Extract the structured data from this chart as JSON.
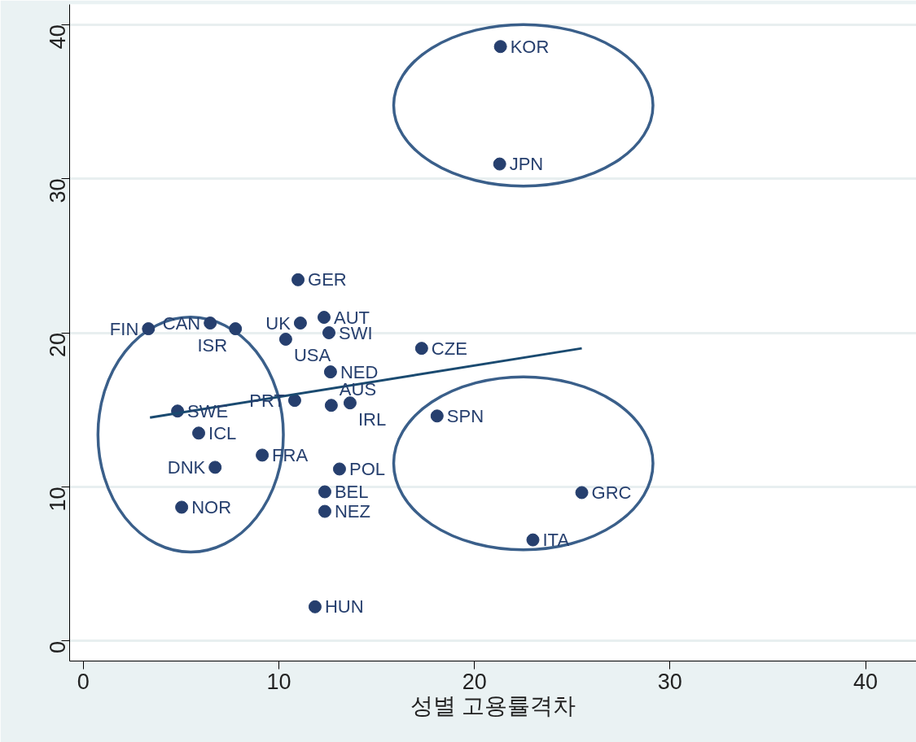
{
  "chart_data": {
    "type": "scatter",
    "xlabel": "성별 고용률격차",
    "xlim": [
      -0.7,
      42.6
    ],
    "ylim": [
      -1.3,
      41.3
    ],
    "xticks": [
      0,
      10,
      20,
      30,
      40
    ],
    "yticks": [
      0,
      10,
      20,
      30,
      40
    ],
    "grid": "y",
    "series": [
      {
        "marker": "circle",
        "color": "#263f6e",
        "x": [
          21.33,
          21.29,
          10.98,
          12.31,
          11.1,
          12.56,
          6.49,
          7.78,
          3.33,
          10.35,
          17.3,
          12.64,
          10.81,
          12.68,
          13.64,
          4.82,
          18.09,
          5.9,
          9.15,
          6.74,
          13.1,
          12.35,
          25.49,
          5.03,
          12.35,
          22.99,
          11.85
        ],
        "values": [
          38.57,
          30.95,
          23.44,
          21.0,
          20.63,
          20.0,
          20.63,
          20.26,
          20.26,
          19.58,
          18.99,
          17.46,
          15.61,
          15.29,
          15.45,
          14.92,
          14.6,
          13.49,
          12.06,
          11.27,
          11.16,
          9.68,
          9.63,
          8.68,
          8.41,
          6.56,
          2.22
        ]
      },
      {
        "type": "line",
        "color": "#1a4a70",
        "x": [
          3.41,
          25.49
        ],
        "values": [
          14.5,
          18.99
        ]
      }
    ],
    "annotations": [
      {
        "text": "KOR",
        "x": 21.33,
        "y": 38.57
      },
      {
        "text": "JPN",
        "x": 21.29,
        "y": 30.95
      },
      {
        "text": "GER",
        "x": 10.98,
        "y": 23.44
      },
      {
        "text": "AUT",
        "x": 12.31,
        "y": 21.0
      },
      {
        "text": "UK",
        "x": 11.1,
        "y": 20.63
      },
      {
        "text": "SWI",
        "x": 12.56,
        "y": 20.0
      },
      {
        "text": "CAN",
        "x": 6.49,
        "y": 20.63
      },
      {
        "text": "ISR",
        "x": 7.78,
        "y": 20.26
      },
      {
        "text": "FIN",
        "x": 3.33,
        "y": 20.26
      },
      {
        "text": "USA",
        "x": 10.35,
        "y": 19.58
      },
      {
        "text": "CZE",
        "x": 17.3,
        "y": 18.99
      },
      {
        "text": "NED",
        "x": 12.64,
        "y": 17.46
      },
      {
        "text": "PRT",
        "x": 10.81,
        "y": 15.61
      },
      {
        "text": "AUS",
        "x": 12.68,
        "y": 15.29
      },
      {
        "text": "IRL",
        "x": 13.64,
        "y": 15.45
      },
      {
        "text": "SWE",
        "x": 4.82,
        "y": 14.92
      },
      {
        "text": "SPN",
        "x": 18.09,
        "y": 14.6
      },
      {
        "text": "ICL",
        "x": 5.9,
        "y": 13.49
      },
      {
        "text": "FRA",
        "x": 9.15,
        "y": 12.06
      },
      {
        "text": "DNK",
        "x": 6.74,
        "y": 11.27
      },
      {
        "text": "POL",
        "x": 13.1,
        "y": 11.16
      },
      {
        "text": "BEL",
        "x": 12.35,
        "y": 9.68
      },
      {
        "text": "GRC",
        "x": 25.49,
        "y": 9.63
      },
      {
        "text": "NOR",
        "x": 5.03,
        "y": 8.68
      },
      {
        "text": "NEZ",
        "x": 12.35,
        "y": 8.41
      },
      {
        "text": "ITA",
        "x": 22.99,
        "y": 6.56
      },
      {
        "text": "HUN",
        "x": 11.85,
        "y": 2.22
      }
    ]
  }
}
